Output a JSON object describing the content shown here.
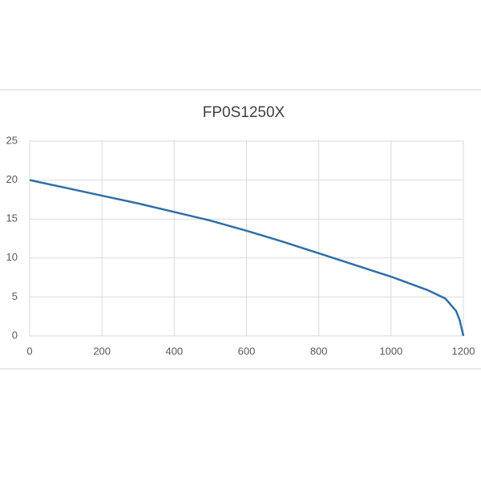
{
  "chart_data": {
    "type": "line",
    "title": "FP0S1250X",
    "x": [
      0,
      100,
      200,
      300,
      400,
      500,
      600,
      700,
      800,
      900,
      1000,
      1100,
      1150,
      1180,
      1190,
      1200
    ],
    "values": [
      20,
      19,
      18,
      17,
      15.9,
      14.8,
      13.5,
      12.1,
      10.6,
      9.1,
      7.6,
      5.9,
      4.8,
      3.2,
      2,
      0
    ],
    "color": "#2f6ea6",
    "xlim": [
      0,
      1200
    ],
    "xticks": [
      0,
      200,
      400,
      600,
      800,
      1000,
      1200
    ],
    "ylim": [
      0,
      25
    ],
    "yticks": [
      0,
      5,
      10,
      15,
      20,
      25
    ],
    "grid": true
  }
}
